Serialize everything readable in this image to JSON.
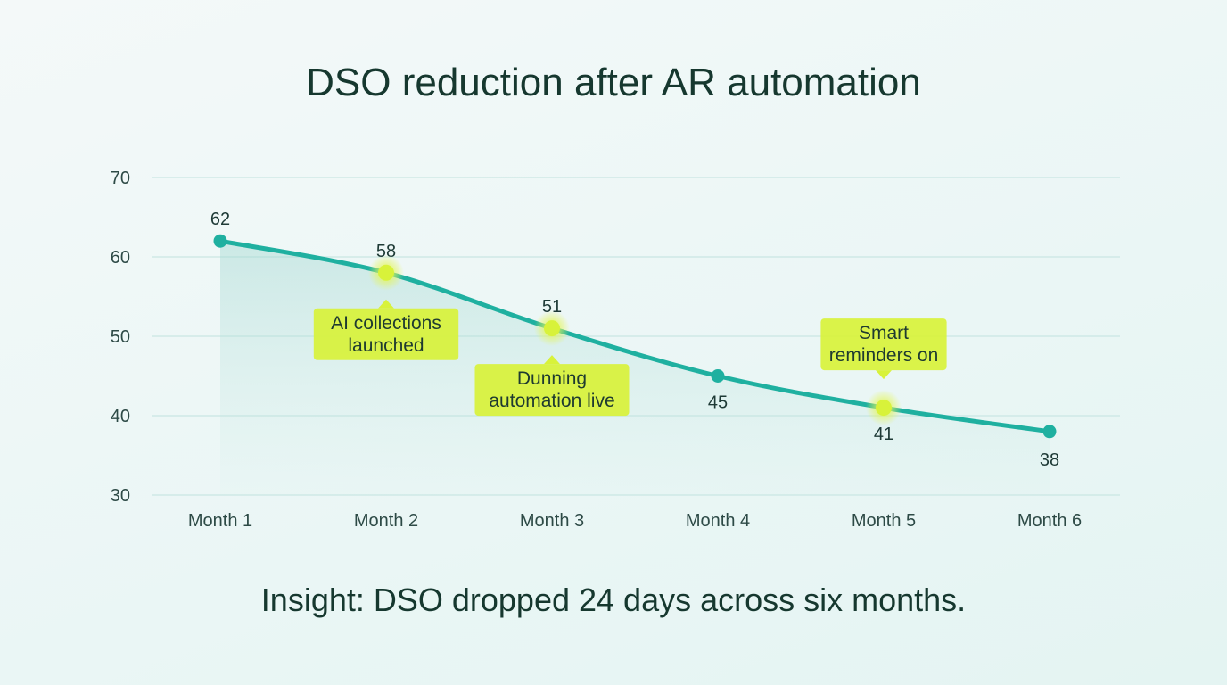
{
  "chart_data": {
    "type": "line",
    "title": "DSO reduction after AR automation",
    "categories": [
      "Month 1",
      "Month 2",
      "Month 3",
      "Month 4",
      "Month 5",
      "Month 6"
    ],
    "values": [
      62,
      58,
      51,
      45,
      41,
      38
    ],
    "ylim": [
      30,
      70
    ],
    "yticks": [
      30,
      40,
      50,
      60,
      70
    ],
    "grid": true,
    "xlabel": "",
    "ylabel": "",
    "annotations": [
      {
        "index": 1,
        "text": [
          "AI collections",
          "launched"
        ],
        "position": "below"
      },
      {
        "index": 2,
        "text": [
          "Dunning",
          "automation live"
        ],
        "position": "below"
      },
      {
        "index": 4,
        "text": [
          "Smart",
          "reminders on"
        ],
        "position": "above"
      }
    ],
    "colors": {
      "line": "#1fb0a0",
      "highlight": "#d8f23a",
      "grid": "#c9e6e3"
    }
  },
  "insight": "Insight: DSO dropped 24 days across six months."
}
